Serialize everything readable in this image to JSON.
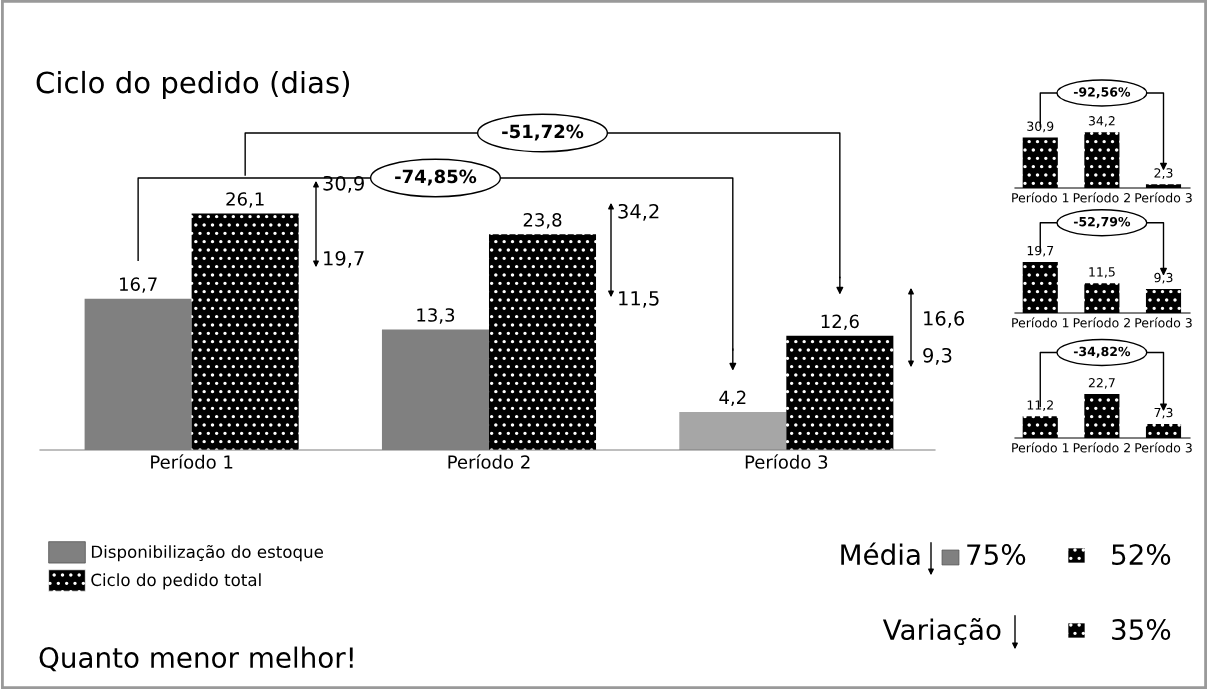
{
  "chart_data": [
    {
      "type": "bar",
      "title": "Ciclo do pedido (dias)",
      "categories": [
        "Período 1",
        "Período 2",
        "Período 3"
      ],
      "series": [
        {
          "name": "Disponibilização do estoque",
          "color": "#808080",
          "colors": [
            "#808080",
            "#808080",
            "#a6a6a6"
          ],
          "values": [
            16.7,
            13.3,
            4.2
          ],
          "value_labels": [
            "16,7",
            "13,3",
            "4,2"
          ]
        },
        {
          "name": "Ciclo do pedido total",
          "color": "#000000",
          "values": [
            26.1,
            23.8,
            12.6
          ],
          "value_labels": [
            "26,1",
            "23,8",
            "12,6"
          ]
        }
      ],
      "legend": "bottom left",
      "tick_labels": "x",
      "annotations": [
        "-51,72%",
        "-74,85%",
        "30,9",
        "19,7",
        "34,2",
        "11,5",
        "16,6",
        "9,3",
        "Média",
        "75%",
        "52%",
        "Variação",
        "35%",
        "Quanto menor melhor!"
      ]
    },
    {
      "type": "bar",
      "categories": [
        "Período 1",
        "Período 2",
        "Período 3"
      ],
      "color": "#000000",
      "values": [
        30.9,
        34.2,
        2.3
      ],
      "value_labels": [
        "30,9",
        "34,2",
        "2,3"
      ],
      "tick_labels": "x",
      "annotations": [
        "-92,56%"
      ]
    },
    {
      "type": "bar",
      "categories": [
        "Período 1",
        "Período 2",
        "Período 3"
      ],
      "color": "#000000",
      "values": [
        19.7,
        11.5,
        9.3
      ],
      "value_labels": [
        "19,7",
        "11,5",
        "9,3"
      ],
      "tick_labels": "x",
      "annotations": [
        "-52,79%"
      ]
    },
    {
      "type": "bar",
      "categories": [
        "Período 1",
        "Período 2",
        "Período 3"
      ],
      "color": "#000000",
      "values": [
        11.2,
        22.7,
        7.3
      ],
      "value_labels": [
        "11,2",
        "22,7",
        "7,3"
      ],
      "tick_labels": "x",
      "annotations": [
        "-34,82%"
      ]
    }
  ]
}
